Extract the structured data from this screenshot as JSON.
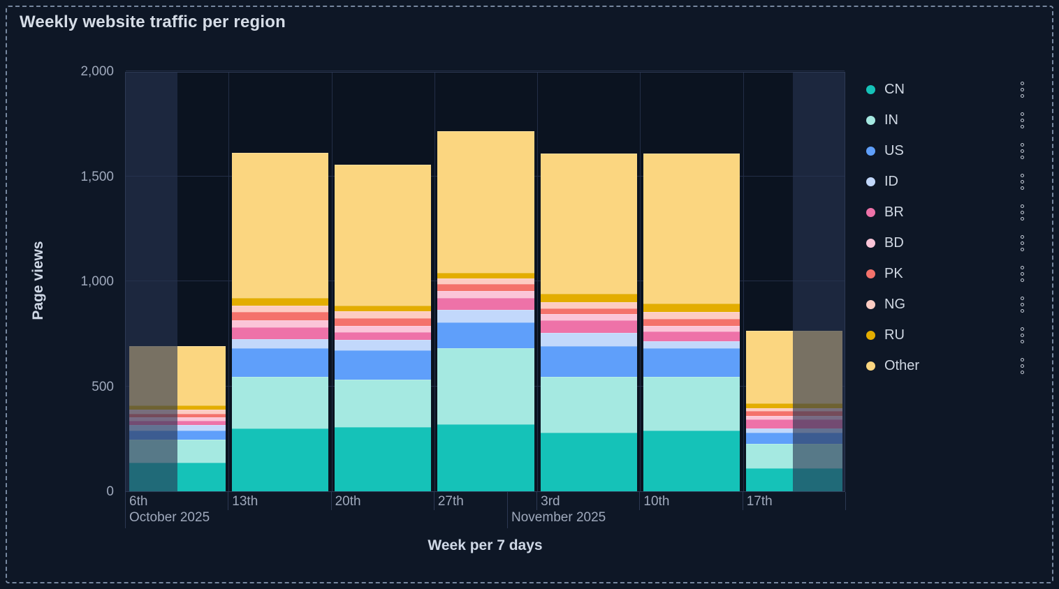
{
  "panel": {
    "title": "Weekly website traffic per region"
  },
  "axes": {
    "y_label": "Page views",
    "x_label": "Week per 7 days",
    "y_ticks": [
      {
        "value": 0,
        "label": "0"
      },
      {
        "value": 500,
        "label": "500"
      },
      {
        "value": 1000,
        "label": "1,000"
      },
      {
        "value": 1500,
        "label": "1,500"
      },
      {
        "value": 2000,
        "label": "2,000"
      }
    ],
    "month_labels": [
      {
        "label": "October 2025",
        "anchor_week_index": 0
      },
      {
        "label": "November 2025",
        "anchor_day_offset_weeks": 3.714
      }
    ]
  },
  "chart_data": {
    "type": "bar",
    "stacked": true,
    "title": "Weekly website traffic per region",
    "xlabel": "Week per 7 days",
    "ylabel": "Page views",
    "ylim": [
      0,
      2000
    ],
    "grid": true,
    "legend_position": "right",
    "categories": [
      "6th",
      "13th",
      "20th",
      "27th",
      "3rd",
      "10th",
      "17th"
    ],
    "partial_weeks_dimmed": {
      "first_bar_left_half": true,
      "last_bar_right_half": true
    },
    "series": [
      {
        "name": "CN",
        "color": "#15c2b8",
        "values": [
          135,
          300,
          305,
          320,
          280,
          290,
          110
        ]
      },
      {
        "name": "IN",
        "color": "#a5e9e1",
        "values": [
          110,
          245,
          225,
          360,
          265,
          255,
          115
        ]
      },
      {
        "name": "US",
        "color": "#5f9ffa",
        "values": [
          45,
          135,
          140,
          125,
          145,
          135,
          55
        ]
      },
      {
        "name": "ID",
        "color": "#c2d8fb",
        "values": [
          25,
          45,
          50,
          60,
          65,
          33,
          20
        ]
      },
      {
        "name": "BR",
        "color": "#ee72a8",
        "values": [
          20,
          55,
          37,
          55,
          60,
          47,
          43
        ]
      },
      {
        "name": "BD",
        "color": "#fbc5d8",
        "values": [
          18,
          35,
          30,
          33,
          30,
          27,
          17
        ]
      },
      {
        "name": "PK",
        "color": "#f4726b",
        "values": [
          17,
          40,
          37,
          33,
          27,
          33,
          23
        ]
      },
      {
        "name": "NG",
        "color": "#fdccc2",
        "values": [
          20,
          30,
          33,
          27,
          30,
          33,
          13
        ]
      },
      {
        "name": "RU",
        "color": "#e3ad00",
        "values": [
          20,
          35,
          27,
          27,
          37,
          40,
          23
        ]
      },
      {
        "name": "Other",
        "color": "#fbd680",
        "values": [
          280,
          690,
          670,
          675,
          670,
          715,
          345
        ]
      }
    ]
  }
}
